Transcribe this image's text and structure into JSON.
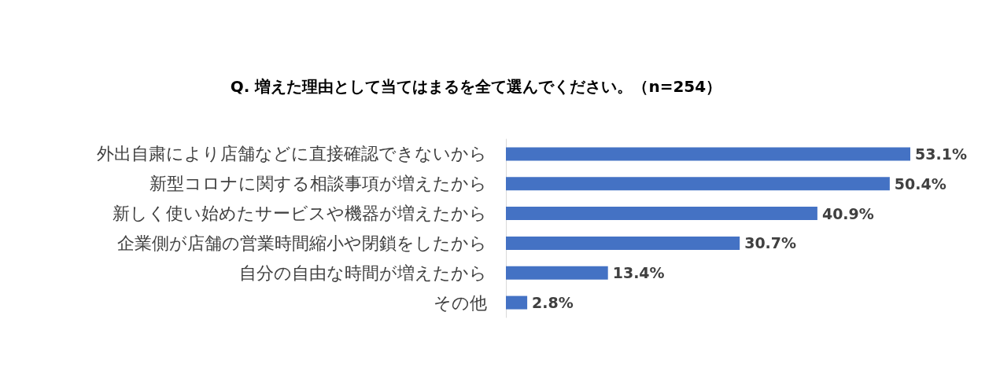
{
  "chart_data": {
    "type": "bar",
    "orientation": "horizontal",
    "title": "Q. 増えた理由として当てはまるを全て選んでください。（n=254）",
    "categories": [
      "外出自粛により店舗などに直接確認できないから",
      "新型コロナに関する相談事項が増えたから",
      "新しく使い始めたサービスや機器が増えたから",
      "企業側が店舗の営業時間縮小や閉鎖をしたから",
      "自分の自由な時間が増えたから",
      "その他"
    ],
    "values": [
      53.1,
      50.4,
      40.9,
      30.7,
      13.4,
      2.8
    ],
    "value_labels": [
      "53.1%",
      "50.4%",
      "40.9%",
      "30.7%",
      "13.4%",
      "2.8%"
    ],
    "color": "#4472c4"
  }
}
